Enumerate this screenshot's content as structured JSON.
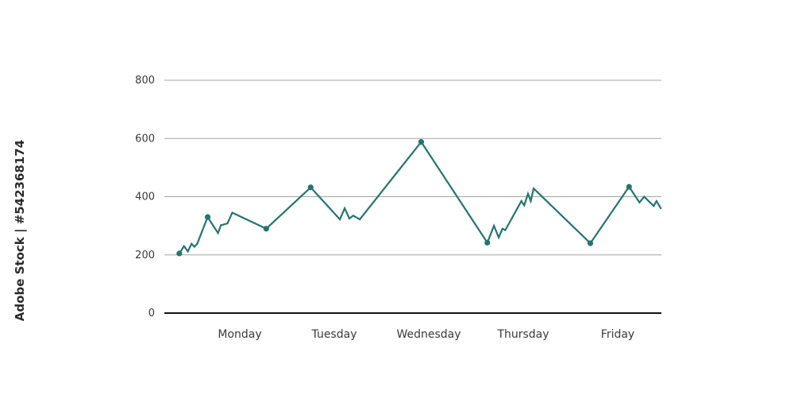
{
  "watermark": "Adobe Stock | #542368174",
  "colors": {
    "line": "#24756e",
    "grid": "#a6a6a6",
    "axis": "#111111",
    "text": "#3a3a3a"
  },
  "chart_data": {
    "type": "line",
    "title": "",
    "xlabel": "",
    "ylabel": "",
    "ylim": [
      0,
      800
    ],
    "yticks": [
      0,
      200,
      400,
      600,
      800
    ],
    "grid": true,
    "categories": [
      "Monday",
      "Tuesday",
      "Wednesday",
      "Thursday",
      "Friday"
    ],
    "xlim": [
      -0.65,
      4.45
    ],
    "series": [
      {
        "name": "",
        "points": [
          {
            "x": -0.64,
            "y": 205
          },
          {
            "x": -0.59,
            "y": 230
          },
          {
            "x": -0.55,
            "y": 212
          },
          {
            "x": -0.51,
            "y": 238
          },
          {
            "x": -0.48,
            "y": 228
          },
          {
            "x": -0.45,
            "y": 238
          },
          {
            "x": -0.34,
            "y": 330
          },
          {
            "x": -0.23,
            "y": 275
          },
          {
            "x": -0.2,
            "y": 302
          },
          {
            "x": -0.13,
            "y": 308
          },
          {
            "x": -0.08,
            "y": 345
          },
          {
            "x": 0.28,
            "y": 290
          },
          {
            "x": 0.75,
            "y": 432
          },
          {
            "x": 1.06,
            "y": 322
          },
          {
            "x": 1.11,
            "y": 360
          },
          {
            "x": 1.16,
            "y": 325
          },
          {
            "x": 1.2,
            "y": 335
          },
          {
            "x": 1.27,
            "y": 322
          },
          {
            "x": 1.92,
            "y": 588
          },
          {
            "x": 2.62,
            "y": 242
          },
          {
            "x": 2.69,
            "y": 300
          },
          {
            "x": 2.74,
            "y": 260
          },
          {
            "x": 2.78,
            "y": 290
          },
          {
            "x": 2.81,
            "y": 285
          },
          {
            "x": 2.98,
            "y": 385
          },
          {
            "x": 3.01,
            "y": 370
          },
          {
            "x": 3.05,
            "y": 410
          },
          {
            "x": 3.08,
            "y": 385
          },
          {
            "x": 3.11,
            "y": 428
          },
          {
            "x": 3.71,
            "y": 240
          },
          {
            "x": 4.12,
            "y": 434
          },
          {
            "x": 4.23,
            "y": 380
          },
          {
            "x": 4.28,
            "y": 400
          },
          {
            "x": 4.38,
            "y": 368
          },
          {
            "x": 4.41,
            "y": 385
          },
          {
            "x": 4.46,
            "y": 358
          }
        ],
        "markers": [
          {
            "x": -0.64,
            "y": 205
          },
          {
            "x": -0.34,
            "y": 330
          },
          {
            "x": 0.28,
            "y": 290
          },
          {
            "x": 0.75,
            "y": 432
          },
          {
            "x": 1.92,
            "y": 588
          },
          {
            "x": 2.62,
            "y": 242
          },
          {
            "x": 3.71,
            "y": 240
          },
          {
            "x": 4.12,
            "y": 434
          }
        ]
      }
    ]
  }
}
